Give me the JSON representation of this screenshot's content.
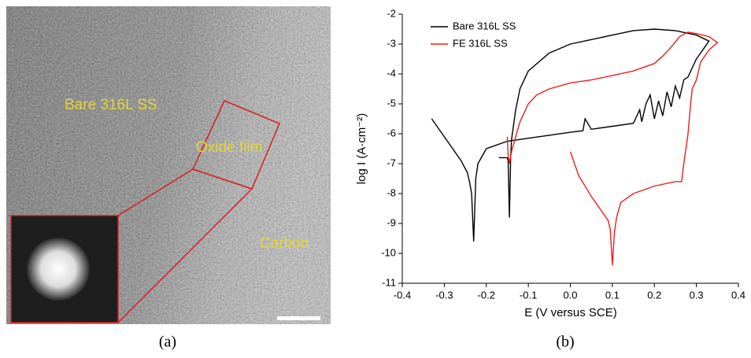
{
  "image": {
    "labels": [
      "Bare 316L SS",
      "Oxide film",
      "Carbon"
    ],
    "caption": "(a)"
  },
  "chart_data": {
    "type": "line",
    "caption": "(b)",
    "xlabel": "E (V versus SCE)",
    "ylabel": "log I (A·cm⁻²)",
    "xlim": [
      -0.4,
      0.4
    ],
    "ylim": [
      -11,
      -2
    ],
    "xticks": [
      -0.4,
      -0.3,
      -0.2,
      -0.1,
      {
        "value": 0,
        "label": "0.0"
      },
      0.1,
      0.2,
      0.3,
      0.4
    ],
    "yticks": [
      -11,
      -10,
      -9,
      -8,
      -7,
      -6,
      -5,
      -4,
      -3,
      -2
    ],
    "legend": "upper-left",
    "series": [
      {
        "name": "Bare 316L SS",
        "color": "#000000",
        "x": [
          -0.33,
          -0.29,
          -0.26,
          -0.245,
          -0.24,
          -0.235,
          -0.23,
          -0.225,
          -0.22,
          -0.2,
          -0.15,
          -0.1,
          -0.05,
          0.0,
          0.03,
          0.035,
          0.05,
          0.1,
          0.15,
          0.165,
          0.17,
          0.18,
          0.19,
          0.2,
          0.21,
          0.22,
          0.23,
          0.24,
          0.25,
          0.26,
          0.27,
          0.28,
          0.3,
          0.32,
          0.33,
          0.3,
          0.25,
          0.2,
          0.15,
          0.1,
          0.05,
          0.0,
          -0.05,
          -0.1,
          -0.12,
          -0.13,
          -0.135,
          -0.14,
          -0.142,
          -0.145,
          -0.148,
          -0.15,
          -0.17
        ],
        "values": [
          -5.5,
          -6.3,
          -6.9,
          -7.3,
          -7.6,
          -8.0,
          -9.6,
          -7.5,
          -7.0,
          -6.5,
          -6.25,
          -6.15,
          -6.05,
          -5.95,
          -5.9,
          -5.5,
          -5.85,
          -5.75,
          -5.65,
          -5.2,
          -5.6,
          -5.0,
          -4.7,
          -5.5,
          -4.9,
          -5.4,
          -4.6,
          -5.1,
          -4.4,
          -4.8,
          -4.2,
          -4.1,
          -3.5,
          -3.1,
          -2.9,
          -2.7,
          -2.55,
          -2.5,
          -2.55,
          -2.7,
          -2.85,
          -3.0,
          -3.3,
          -3.9,
          -4.5,
          -5.2,
          -5.7,
          -6.2,
          -6.8,
          -8.8,
          -6.9,
          -6.8,
          -6.8
        ]
      },
      {
        "name": "FE 316L SS",
        "color": "#e8201c",
        "x": [
          -0.15,
          -0.148,
          -0.145,
          -0.14,
          -0.13,
          -0.12,
          -0.1,
          -0.08,
          -0.05,
          0.0,
          0.05,
          0.1,
          0.15,
          0.2,
          0.22,
          0.24,
          0.26,
          0.28,
          0.3,
          0.33,
          0.35,
          0.33,
          0.31,
          0.3,
          0.29,
          0.285,
          0.28,
          0.275,
          0.27,
          0.265,
          0.25,
          0.2,
          0.15,
          0.12,
          0.11,
          0.105,
          0.1,
          0.095,
          0.09,
          0.07,
          0.05,
          0.02,
          0.01,
          0.0
        ],
        "values": [
          -6.1,
          -6.7,
          -7.0,
          -6.6,
          -6.1,
          -5.6,
          -5.0,
          -4.7,
          -4.5,
          -4.3,
          -4.2,
          -4.05,
          -3.9,
          -3.65,
          -3.4,
          -3.1,
          -2.75,
          -2.6,
          -2.65,
          -2.75,
          -2.95,
          -3.2,
          -3.6,
          -4.2,
          -4.5,
          -5.2,
          -6.0,
          -6.5,
          -7.0,
          -7.6,
          -7.6,
          -7.75,
          -8.0,
          -8.3,
          -8.8,
          -9.3,
          -10.4,
          -9.2,
          -8.9,
          -8.5,
          -8.1,
          -7.4,
          -7.0,
          -6.6
        ]
      }
    ]
  }
}
